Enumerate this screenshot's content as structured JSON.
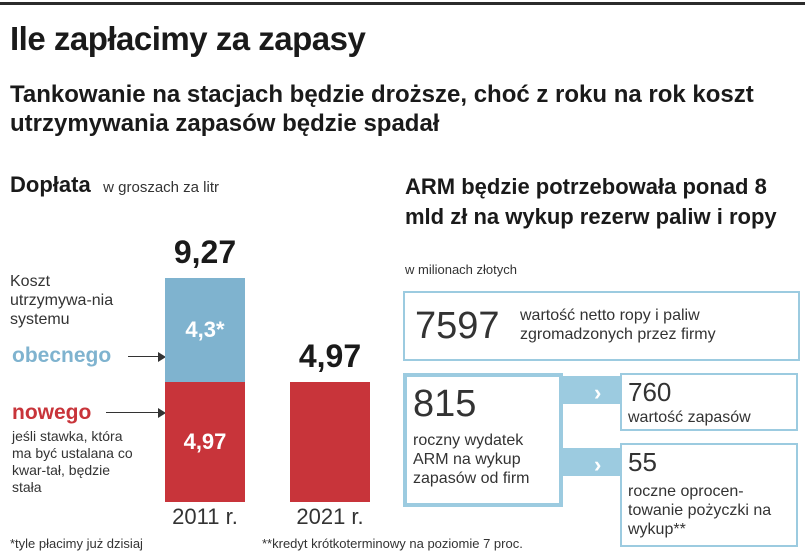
{
  "title": "Ile zapłacimy za zapasy",
  "subtitle": "Tankowanie na stacjach będzie droższe, choć z roku na rok koszt utrzymywania zapasów będzie spadał",
  "left": {
    "heading": "Dopłata",
    "unit": "w groszach za litr",
    "cost_label": "Koszt utrzymywa-nia systemu",
    "obecnego_label": "obecnego",
    "nowego_label": "nowego",
    "nowego_note": "jeśli stawka, która ma być ustalana co kwar-tał, będzie stała"
  },
  "right": {
    "heading": "ARM będzie potrzebowała ponad 8 mld zł na wykup rezerw paliw i ropy",
    "unit": "w milionach złotych",
    "box1_value": "7597",
    "box1_desc": "wartość netto ropy i paliw zgromadzonych przez firmy",
    "box2_value": "815",
    "box2_desc": "roczny wydatek ARM na wykup zapasów od firm",
    "box3_value": "760",
    "box3_desc": "wartość zapasów",
    "box4_value": "55",
    "box4_desc": "roczne oprocen-towanie pożyczki na wykup**"
  },
  "footnotes": {
    "f1": "*tyle płacimy już dzisiaj",
    "f2": "**kredyt krótkoterminowy na poziomie 7 proc."
  },
  "colors": {
    "obecnego": "#7fb3cf",
    "nowego": "#c8343a",
    "accent_blue": "#9ccbe0"
  },
  "chart_data": {
    "type": "bar",
    "categories": [
      "2011 r.",
      "2021 r."
    ],
    "series": [
      {
        "name": "nowego",
        "values": [
          4.97,
          4.97
        ],
        "labels": [
          "4,97",
          ""
        ]
      },
      {
        "name": "obecnego",
        "values": [
          4.3,
          0
        ],
        "labels": [
          "4,3*",
          ""
        ]
      }
    ],
    "totals": [
      "9,27",
      "4,97"
    ],
    "ylim": [
      0,
      9.27
    ]
  }
}
